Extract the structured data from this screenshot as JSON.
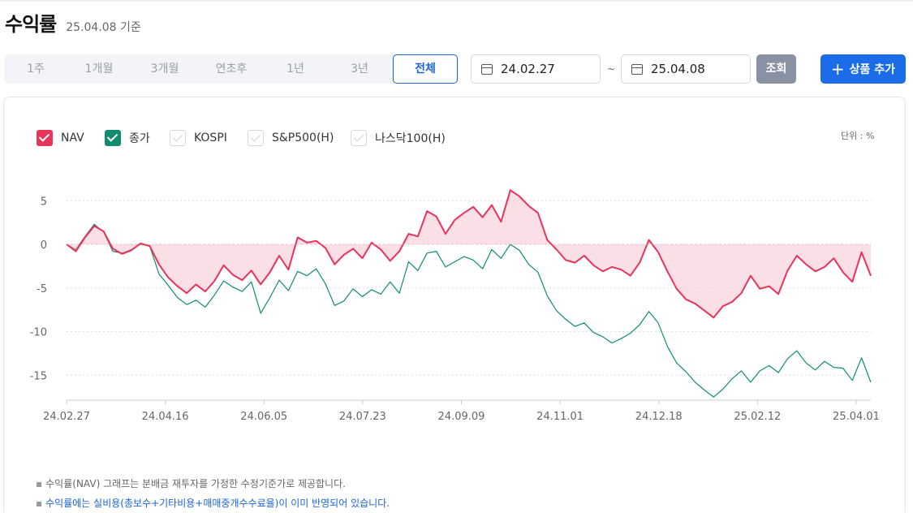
{
  "header": {
    "title": "수익률",
    "base_date": "25.04.08 기준"
  },
  "period_tabs": [
    {
      "label": "1주",
      "active": false
    },
    {
      "label": "1개월",
      "active": false
    },
    {
      "label": "3개월",
      "active": false
    },
    {
      "label": "연초후",
      "active": false
    },
    {
      "label": "1년",
      "active": false
    },
    {
      "label": "3년",
      "active": false
    },
    {
      "label": "전체",
      "active": true
    }
  ],
  "date_range": {
    "start": "24.02.27",
    "separator": "~",
    "end": "25.04.08"
  },
  "buttons": {
    "search": "조회",
    "add_product": "상품 추가"
  },
  "legend": [
    {
      "label": "NAV",
      "checked": true,
      "color": "#e8335a"
    },
    {
      "label": "종가",
      "checked": true,
      "color": "#118c6e"
    },
    {
      "label": "KOSPI",
      "checked": false,
      "color": ""
    },
    {
      "label": "S&P500(H)",
      "checked": false,
      "color": ""
    },
    {
      "label": "나스닥100(H)",
      "checked": false,
      "color": ""
    }
  ],
  "unit_label": "단위 : %",
  "chart_data": {
    "type": "line",
    "y_ticks": [
      5,
      0,
      -5,
      -10,
      -15
    ],
    "ylim": [
      -18,
      7
    ],
    "x_ticks": [
      "24.02.27",
      "24.04.16",
      "24.06.05",
      "24.07.23",
      "24.09.09",
      "24.11.01",
      "24.12.18",
      "25.02.12",
      "25.04.01"
    ],
    "grid": true,
    "baseline": 0,
    "series": [
      {
        "name": "NAV",
        "color": "#e8335a",
        "fill_to_zero": true,
        "values": [
          0,
          -0.8,
          0.8,
          2.1,
          1.5,
          -0.5,
          -1.1,
          -0.7,
          0.1,
          -0.2,
          -2.3,
          -3.8,
          -4.8,
          -5.6,
          -4.6,
          -5.4,
          -4.2,
          -2.4,
          -3.5,
          -4.1,
          -3.0,
          -4.6,
          -3.2,
          -1.3,
          -2.9,
          0.8,
          0.2,
          0.4,
          -0.4,
          -2.3,
          -1.2,
          -0.5,
          -1.6,
          0.2,
          -0.6,
          -1.9,
          -0.8,
          1.2,
          0.9,
          3.8,
          3.2,
          1.2,
          2.8,
          3.6,
          4.3,
          3.1,
          4.5,
          2.6,
          6.2,
          5.5,
          4.4,
          3.6,
          0.5,
          -0.6,
          -1.8,
          -2.1,
          -1.3,
          -2.4,
          -3.1,
          -2.6,
          -2.9,
          -3.6,
          -2.1,
          0.5,
          -0.9,
          -3.1,
          -5.1,
          -6.3,
          -6.8,
          -7.6,
          -8.4,
          -7.1,
          -6.6,
          -5.6,
          -3.6,
          -5.1,
          -4.8,
          -5.7,
          -3.0,
          -1.3,
          -2.3,
          -3.1,
          -2.6,
          -1.6,
          -3.2,
          -4.3,
          -0.9,
          -3.6
        ]
      },
      {
        "name": "종가",
        "color": "#118c6e",
        "fill_to_zero": false,
        "values": [
          0,
          -0.6,
          0.9,
          2.3,
          1.4,
          -0.8,
          -1.0,
          -0.6,
          0.0,
          -0.2,
          -3.4,
          -4.7,
          -6.1,
          -6.9,
          -6.4,
          -7.2,
          -5.8,
          -4.2,
          -4.9,
          -5.4,
          -4.3,
          -7.9,
          -6.1,
          -4.1,
          -5.3,
          -3.1,
          -3.6,
          -2.8,
          -4.5,
          -7.0,
          -6.5,
          -5.1,
          -6.0,
          -5.2,
          -5.7,
          -4.3,
          -5.6,
          -2.0,
          -3.0,
          -1.0,
          -0.8,
          -2.6,
          -2.0,
          -1.4,
          -1.8,
          -2.8,
          -0.6,
          -1.6,
          0.0,
          -0.7,
          -2.3,
          -3.2,
          -5.9,
          -7.6,
          -8.6,
          -9.4,
          -9.0,
          -10.1,
          -10.6,
          -11.3,
          -10.8,
          -10.2,
          -9.2,
          -7.7,
          -9.0,
          -11.7,
          -13.6,
          -14.6,
          -15.8,
          -16.7,
          -17.5,
          -16.6,
          -15.4,
          -14.5,
          -15.8,
          -14.5,
          -13.9,
          -14.7,
          -13.1,
          -12.2,
          -13.6,
          -14.4,
          -13.4,
          -14.1,
          -14.2,
          -15.6,
          -13.0,
          -15.8
        ]
      }
    ]
  },
  "notes": [
    "수익률(NAV) 그래프는 분배금 재투자를 가정한 수정기준가로 제공합니다.",
    "수익률에는 실비용(총보수+기타비용+매매중개수수료율)이 이미 반영되어 있습니다."
  ]
}
